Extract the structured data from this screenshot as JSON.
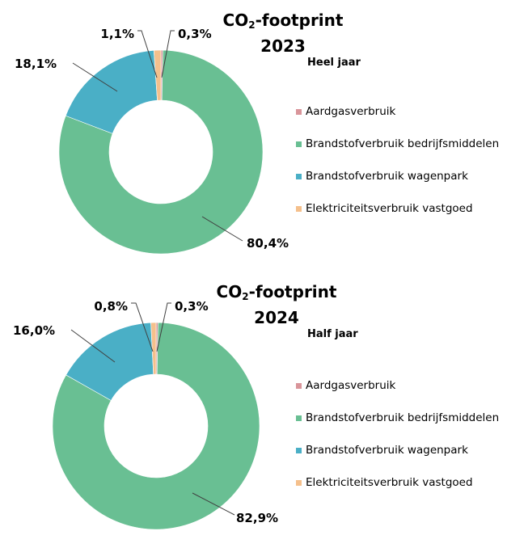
{
  "colors": {
    "Aardgasverbruik": "#d9959a",
    "Brandstofverbruik bedrijfsmiddelen": "#69bf93",
    "Brandstofverbruik wagenpark": "#4aafc6",
    "Elektriciteitsverbruik vastgoed": "#f5c08c"
  },
  "chart_data": [
    {
      "type": "pie",
      "title_main": "CO",
      "title_sub": "2",
      "title_rest": "-footprint",
      "year": "2023",
      "period": "Heel jaar",
      "categories": [
        "Aardgasverbruik",
        "Brandstofverbruik bedrijfsmiddelen",
        "Brandstofverbruik wagenpark",
        "Elektriciteitsverbruik vastgoed"
      ],
      "values": [
        0.3,
        80.4,
        18.1,
        1.1
      ],
      "data_labels": [
        "0,3%",
        "80,4%",
        "18,1%",
        "1,1%"
      ],
      "legend_position": "right"
    },
    {
      "type": "pie",
      "title_main": "CO",
      "title_sub": "2",
      "title_rest": "-footprint",
      "year": "2024",
      "period": "Half jaar",
      "categories": [
        "Aardgasverbruik",
        "Brandstofverbruik bedrijfsmiddelen",
        "Brandstofverbruik wagenpark",
        "Elektriciteitsverbruik vastgoed"
      ],
      "values": [
        0.3,
        82.9,
        16.0,
        0.8
      ],
      "data_labels": [
        "0,3%",
        "82,9%",
        "16,0%",
        "0,8%"
      ],
      "legend_position": "right"
    }
  ]
}
